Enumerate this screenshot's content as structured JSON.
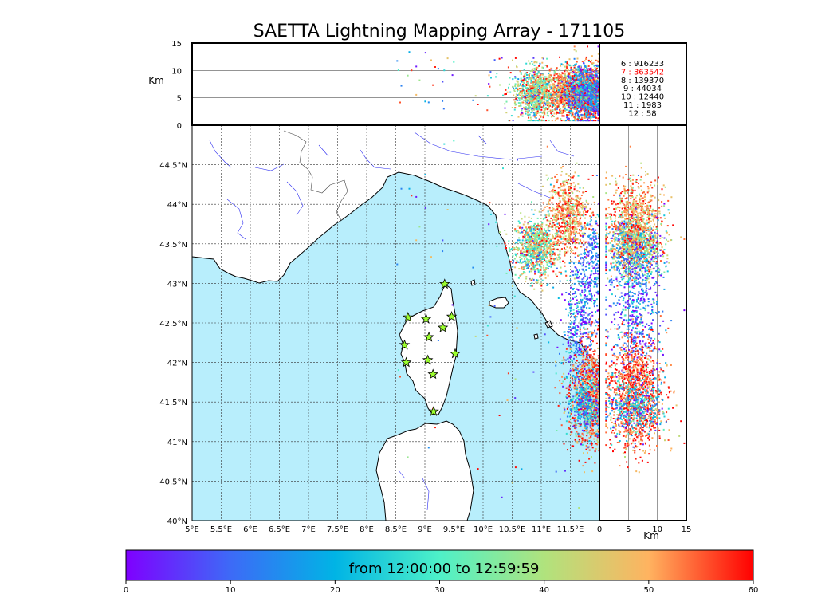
{
  "chart_data": {
    "type": "scatter",
    "title": "SAETTA Lightning Mapping Array - 171105",
    "colorbar": {
      "label": "from 12:00:00 to 12:59:59",
      "ticks": [
        "0",
        "10",
        "20",
        "30",
        "40",
        "50",
        "60"
      ],
      "range": [
        0,
        60
      ],
      "colors": [
        "#7f00ff",
        "#3d6af7",
        "#00b4e5",
        "#4ef1c8",
        "#b0e37d",
        "#ffb360",
        "#ff0000"
      ]
    },
    "map": {
      "lon_range": [
        5.0,
        12.0
      ],
      "lat_range": [
        40.0,
        45.0
      ],
      "lon_ticks": [
        {
          "v": 5.0,
          "label": "5°E"
        },
        {
          "v": 5.5,
          "label": "5.5°E"
        },
        {
          "v": 6.0,
          "label": "6°E"
        },
        {
          "v": 6.5,
          "label": "6.5°E"
        },
        {
          "v": 7.0,
          "label": "7°E"
        },
        {
          "v": 7.5,
          "label": "7.5°E"
        },
        {
          "v": 8.0,
          "label": "8°E"
        },
        {
          "v": 8.5,
          "label": "8.5°E"
        },
        {
          "v": 9.0,
          "label": "9°E"
        },
        {
          "v": 9.5,
          "label": "9.5°E"
        },
        {
          "v": 10.0,
          "label": "10°E"
        },
        {
          "v": 10.5,
          "label": "10.5°E"
        },
        {
          "v": 11.0,
          "label": "11°E"
        },
        {
          "v": 11.5,
          "label": "11.5°E"
        }
      ],
      "lat_ticks": [
        {
          "v": 40.0,
          "label": "40°N"
        },
        {
          "v": 40.5,
          "label": "40.5°N"
        },
        {
          "v": 41.0,
          "label": "41°N"
        },
        {
          "v": 41.5,
          "label": "41.5°N"
        },
        {
          "v": 42.0,
          "label": "42°N"
        },
        {
          "v": 42.5,
          "label": "42.5°N"
        },
        {
          "v": 43.0,
          "label": "43°N"
        },
        {
          "v": 43.5,
          "label": "43.5°N"
        },
        {
          "v": 44.0,
          "label": "44°N"
        },
        {
          "v": 44.5,
          "label": "44.5°N"
        }
      ],
      "stations": [
        {
          "lon": 8.71,
          "lat": 42.57
        },
        {
          "lon": 9.02,
          "lat": 42.55
        },
        {
          "lon": 9.34,
          "lat": 42.99
        },
        {
          "lon": 9.46,
          "lat": 42.58
        },
        {
          "lon": 9.31,
          "lat": 42.44
        },
        {
          "lon": 9.07,
          "lat": 42.32
        },
        {
          "lon": 8.65,
          "lat": 42.22
        },
        {
          "lon": 9.52,
          "lat": 42.11
        },
        {
          "lon": 8.68,
          "lat": 42.0
        },
        {
          "lon": 9.05,
          "lat": 42.03
        },
        {
          "lon": 9.14,
          "lat": 41.85
        },
        {
          "lon": 9.15,
          "lat": 41.38
        }
      ]
    },
    "alt_axis": {
      "label": "Km",
      "range": [
        0,
        15
      ],
      "ticks": [
        "0",
        "5",
        "10",
        "15"
      ],
      "hlines": [
        5,
        10
      ]
    },
    "stats": [
      {
        "n": "6",
        "count": "916233",
        "highlight": false
      },
      {
        "n": "7",
        "count": "363542",
        "highlight": true
      },
      {
        "n": "8",
        "count": "139370",
        "highlight": false
      },
      {
        "n": "9",
        "count": "44034",
        "highlight": false
      },
      {
        "n": "10",
        "count": "12440",
        "highlight": false
      },
      {
        "n": "11",
        "count": "1983",
        "highlight": false
      },
      {
        "n": "12",
        "count": "58",
        "highlight": false
      }
    ]
  }
}
